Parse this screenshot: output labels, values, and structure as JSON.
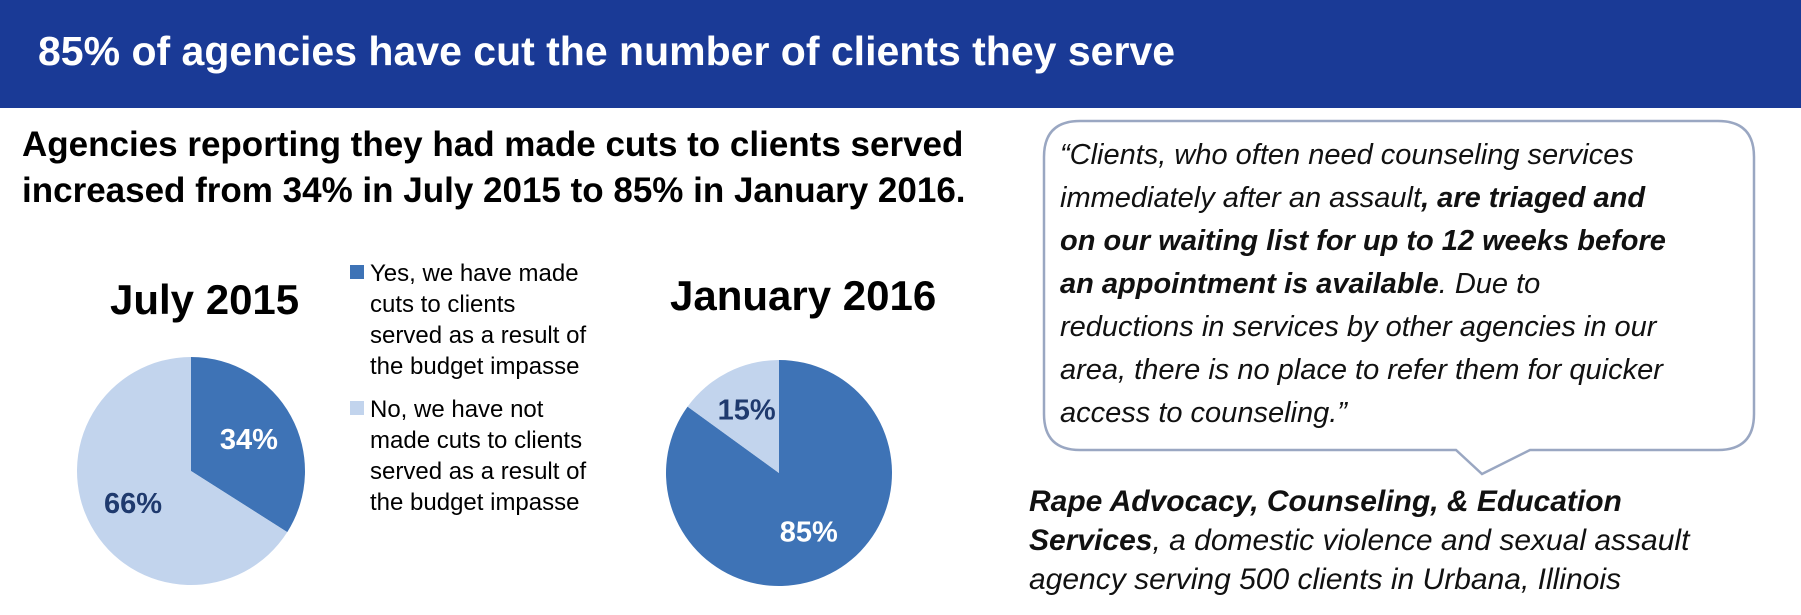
{
  "header": {
    "title": "85% of agencies have cut the number of clients they serve"
  },
  "subtitle": {
    "line1": "Agencies reporting they had made cuts to clients served",
    "line2": "increased from 34% in July 2015 to 85% in January 2016."
  },
  "legend": {
    "items": [
      {
        "label": "Yes, we have made cuts to clients served as a result of the budget impasse",
        "color": "#3e73b6"
      },
      {
        "label": "No, we have not made cuts to clients served as a result of the budget impasse",
        "color": "#c2d4ed"
      }
    ]
  },
  "chart_data": [
    {
      "type": "pie",
      "title": "July 2015",
      "categories": [
        "Yes, we have made cuts to clients served as a result of the budget impasse",
        "No, we have not made cuts to clients served as a result of the budget impasse"
      ],
      "values": [
        34,
        66
      ],
      "labels": [
        "34%",
        "66%"
      ],
      "colors": [
        "#3e73b6",
        "#c2d4ed"
      ],
      "label_colors": [
        "#ffffff",
        "#1f3a6e"
      ]
    },
    {
      "type": "pie",
      "title": "January 2016",
      "categories": [
        "Yes, we have made cuts to clients served as a result of the budget impasse",
        "No, we have not made cuts to clients served as a result of the budget impasse"
      ],
      "values": [
        85,
        15
      ],
      "labels": [
        "85%",
        "15%"
      ],
      "colors": [
        "#3e73b6",
        "#c2d4ed"
      ],
      "label_colors": [
        "#ffffff",
        "#1f3a6e"
      ]
    }
  ],
  "quote": {
    "l1_a": "“Clients, who often need counseling services",
    "l2_a": "immediately after an assault",
    "l2_b": ", are triaged and",
    "l3_b": "on our waiting list for up to 12 weeks before",
    "l4_b": "an appointment is available",
    "l4_c": ". Due to",
    "l5": "reductions in services by other agencies in our",
    "l6": "area, there is no place to refer them for quicker",
    "l7": "access to counseling.”"
  },
  "attribution": {
    "org_part1": "Rape Advocacy, Counseling, & Education",
    "org_part2": "Services",
    "desc_part1": ", a domestic violence and sexual assault",
    "desc_part2": "agency serving 500 clients in Urbana, Illinois"
  }
}
